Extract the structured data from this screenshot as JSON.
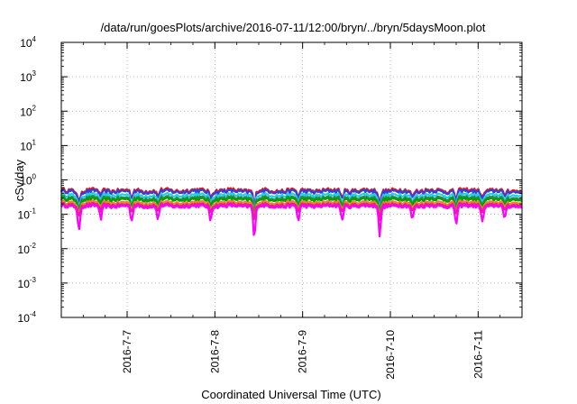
{
  "chart_data": {
    "type": "line",
    "title": "/data/run/goesPlots/archive/2016-07-11/12:00/bryn/../bryn/5daysMoon.plot",
    "xlabel": "Coordinated Universal Time (UTC)",
    "ylabel": "cSv/day",
    "yscale": "log",
    "ylim_exponents": [
      -4,
      4
    ],
    "y_tick_base": "10",
    "y_tick_exponents": [
      "-4",
      "-3",
      "-2",
      "-1",
      "0",
      "1",
      "2",
      "3",
      "4"
    ],
    "x_tick_labels": [
      "2016-7-7",
      "2016-7-8",
      "2016-7-9",
      "2016-7-10",
      "2016-7-11"
    ],
    "xlim_days": [
      "2016-7-6 06:00",
      "2016-7-11 12:00"
    ],
    "grid": true,
    "series": [
      {
        "color": "#e41a1c",
        "base": 0.5
      },
      {
        "color": "#3b3bd9",
        "base": 0.46
      },
      {
        "color": "#22cfe0",
        "base": 0.36
      },
      {
        "color": "#2e8b57",
        "base": 0.3
      },
      {
        "color": "#00a000",
        "base": 0.27
      },
      {
        "color": "#f08030",
        "base": 0.22
      },
      {
        "color": "#e91e8c",
        "base": 0.19
      },
      {
        "color": "#ff00ff",
        "base": 0.17
      }
    ],
    "dips": [
      {
        "day": 6.2,
        "factor": 0.55
      },
      {
        "day": 6.45,
        "factor": 0.35
      },
      {
        "day": 6.7,
        "factor": 0.6
      },
      {
        "day": 7.05,
        "factor": 0.55
      },
      {
        "day": 7.35,
        "factor": 0.6
      },
      {
        "day": 7.95,
        "factor": 0.6
      },
      {
        "day": 8.45,
        "factor": 0.22
      },
      {
        "day": 8.95,
        "factor": 0.55
      },
      {
        "day": 9.45,
        "factor": 0.6
      },
      {
        "day": 9.88,
        "factor": 0.3
      },
      {
        "day": 10.25,
        "factor": 0.6
      },
      {
        "day": 10.75,
        "factor": 0.5
      },
      {
        "day": 11.05,
        "factor": 0.55
      },
      {
        "day": 11.3,
        "factor": 0.6
      }
    ]
  }
}
